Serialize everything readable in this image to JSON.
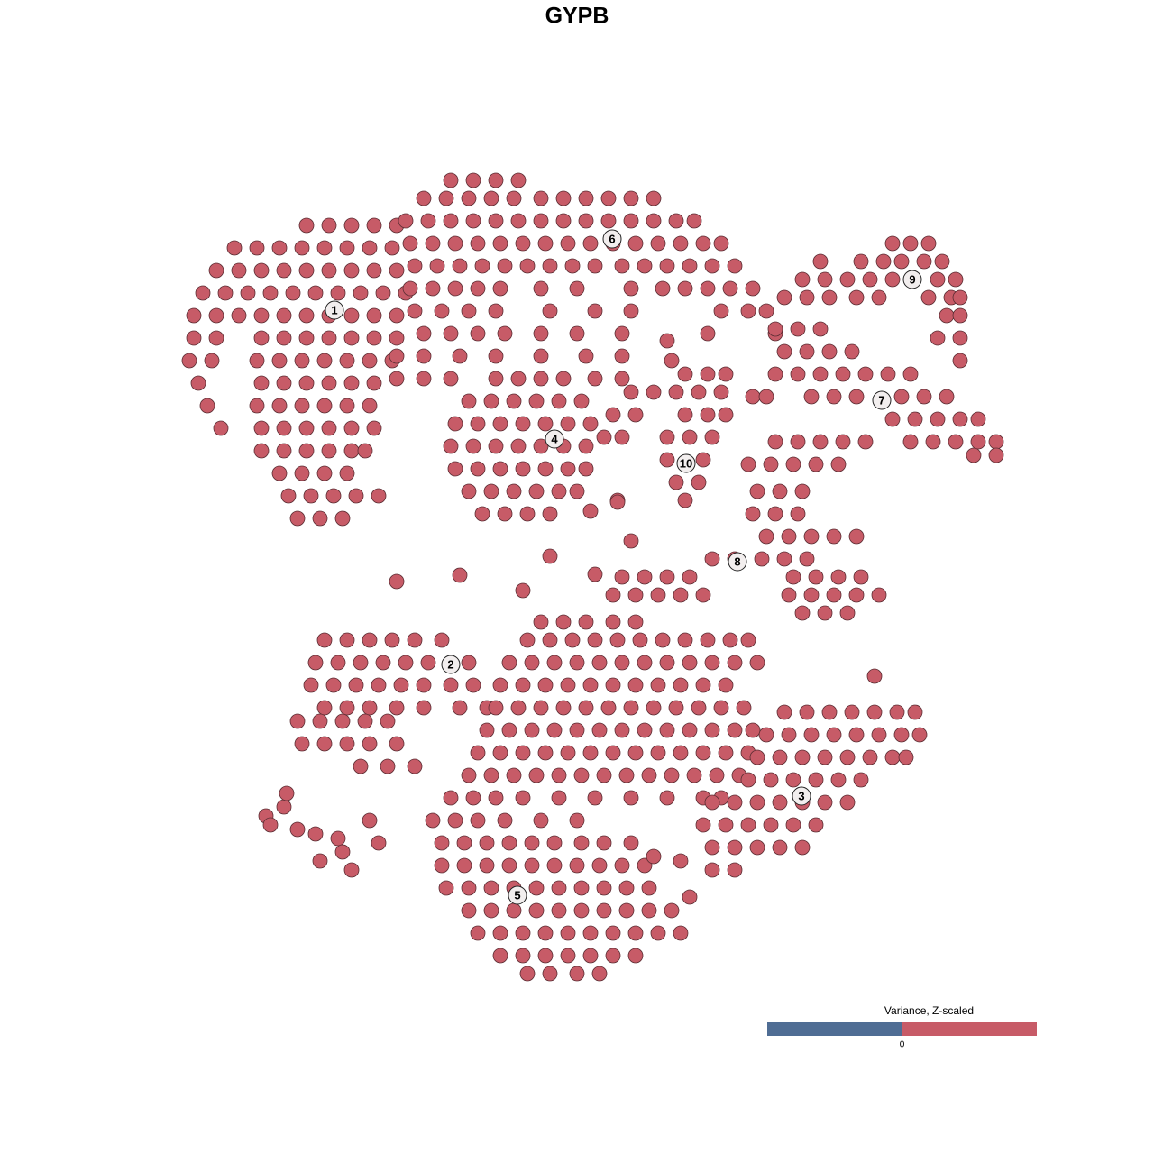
{
  "chart_data": {
    "type": "scatter",
    "title": "GYPB",
    "color": "#c75b67",
    "xlim": [
      200,
      1130
    ],
    "ylim": [
      1095,
      185
    ],
    "x": [
      340,
      365,
      390,
      415,
      440,
      260,
      285,
      310,
      335,
      360,
      385,
      410,
      435,
      240,
      265,
      290,
      315,
      340,
      365,
      390,
      415,
      440,
      225,
      250,
      275,
      300,
      325,
      350,
      375,
      400,
      425,
      450,
      215,
      240,
      265,
      290,
      315,
      340,
      365,
      390,
      415,
      440,
      215,
      240,
      290,
      315,
      340,
      365,
      390,
      415,
      440,
      210,
      235,
      285,
      310,
      335,
      360,
      385,
      410,
      435,
      220,
      290,
      315,
      340,
      365,
      390,
      415,
      230,
      285,
      310,
      335,
      360,
      385,
      410,
      245,
      290,
      315,
      340,
      365,
      390,
      415,
      290,
      315,
      340,
      365,
      390,
      405,
      310,
      335,
      360,
      385,
      320,
      345,
      370,
      395,
      420,
      330,
      355,
      380,
      500,
      525,
      550,
      575,
      470,
      495,
      520,
      545,
      570,
      600,
      625,
      650,
      675,
      700,
      725,
      450,
      475,
      500,
      525,
      550,
      575,
      600,
      625,
      650,
      675,
      700,
      725,
      750,
      770,
      455,
      480,
      505,
      530,
      555,
      580,
      605,
      630,
      655,
      680,
      705,
      730,
      755,
      780,
      800,
      460,
      485,
      510,
      535,
      560,
      585,
      610,
      635,
      660,
      690,
      715,
      740,
      765,
      790,
      815,
      455,
      480,
      505,
      530,
      555,
      600,
      640,
      700,
      735,
      760,
      785,
      810,
      835,
      460,
      490,
      520,
      550,
      610,
      660,
      700,
      800,
      830,
      850,
      470,
      500,
      530,
      560,
      600,
      640,
      690,
      860,
      440,
      470,
      510,
      550,
      600,
      650,
      690,
      440,
      470,
      500,
      660,
      690,
      550,
      575,
      600,
      625,
      520,
      545,
      570,
      595,
      620,
      645,
      505,
      530,
      555,
      580,
      605,
      630,
      655,
      500,
      525,
      550,
      575,
      600,
      625,
      650,
      505,
      530,
      555,
      580,
      605,
      630,
      650,
      520,
      545,
      570,
      595,
      620,
      640,
      535,
      560,
      585,
      610,
      760,
      785,
      805,
      700,
      725,
      750,
      775,
      800,
      680,
      705,
      760,
      785,
      805,
      670,
      690,
      740,
      765,
      790,
      740,
      780,
      750,
      775,
      685,
      760,
      990,
      1010,
      1030,
      910,
      955,
      980,
      1000,
      1025,
      1045,
      890,
      915,
      940,
      965,
      990,
      1040,
      1060,
      870,
      895,
      920,
      950,
      975,
      1030,
      1055,
      1065,
      1050,
      1065,
      1040,
      1065,
      1065,
      860,
      885,
      910,
      870,
      895,
      920,
      945,
      860,
      885,
      910,
      935,
      960,
      985,
      1010,
      835,
      850,
      900,
      925,
      950,
      1000,
      1025,
      1050,
      990,
      1015,
      1040,
      1065,
      1085,
      1010,
      1035,
      1060,
      1085,
      1105,
      1080,
      1105,
      860,
      885,
      910,
      935,
      960,
      830,
      855,
      880,
      905,
      930,
      840,
      865,
      890,
      835,
      860,
      885,
      850,
      875,
      900,
      925,
      950,
      790,
      815,
      845,
      870,
      895,
      690,
      715,
      740,
      765,
      880,
      905,
      930,
      955,
      680,
      705,
      730,
      755,
      780,
      875,
      900,
      925,
      950,
      975,
      890,
      915,
      940,
      440,
      510,
      580,
      610,
      660,
      700,
      685,
      655,
      740,
      745,
      785,
      360,
      385,
      410,
      435,
      460,
      490,
      350,
      375,
      400,
      425,
      450,
      475,
      520,
      345,
      370,
      395,
      420,
      445,
      470,
      500,
      525,
      360,
      385,
      410,
      440,
      470,
      510,
      540,
      330,
      355,
      380,
      405,
      430,
      335,
      360,
      385,
      410,
      440,
      400,
      430,
      460,
      600,
      625,
      650,
      680,
      705,
      585,
      610,
      635,
      660,
      685,
      710,
      735,
      760,
      785,
      810,
      830,
      565,
      590,
      615,
      640,
      665,
      690,
      715,
      740,
      765,
      790,
      815,
      840,
      555,
      580,
      605,
      630,
      655,
      680,
      705,
      730,
      755,
      780,
      805,
      550,
      575,
      600,
      625,
      650,
      675,
      700,
      725,
      750,
      775,
      800,
      825,
      540,
      565,
      590,
      615,
      640,
      665,
      690,
      715,
      740,
      765,
      790,
      815,
      835,
      530,
      555,
      580,
      605,
      630,
      655,
      680,
      705,
      730,
      755,
      780,
      805,
      830,
      520,
      545,
      570,
      595,
      620,
      645,
      670,
      695,
      720,
      745,
      770,
      795,
      820,
      500,
      525,
      550,
      580,
      620,
      660,
      700,
      740,
      780,
      800,
      870,
      895,
      920,
      945,
      970,
      995,
      1015,
      850,
      875,
      900,
      925,
      950,
      975,
      1000,
      1020,
      840,
      865,
      890,
      915,
      940,
      965,
      990,
      830,
      855,
      880,
      905,
      930,
      955,
      790,
      815,
      840,
      865,
      890,
      915,
      940,
      780,
      805,
      830,
      855,
      880,
      905,
      790,
      815,
      840,
      865,
      890,
      790,
      815,
      480,
      505,
      530,
      560,
      600,
      640,
      490,
      515,
      540,
      565,
      590,
      615,
      645,
      670,
      700,
      490,
      515,
      540,
      565,
      590,
      615,
      640,
      665,
      690,
      715,
      495,
      520,
      545,
      570,
      595,
      620,
      645,
      670,
      695,
      720,
      520,
      545,
      570,
      595,
      620,
      645,
      670,
      695,
      720,
      745,
      530,
      555,
      580,
      605,
      630,
      655,
      680,
      705,
      730,
      755,
      555,
      580,
      605,
      630,
      655,
      680,
      705,
      585,
      610,
      640,
      665,
      295,
      315,
      300,
      330,
      350,
      375,
      355,
      380,
      410,
      420,
      390,
      318,
      755,
      725,
      765,
      970,
      1005
    ],
    "values": [
      250,
      250,
      250,
      250,
      250,
      275,
      275,
      275,
      275,
      275,
      275,
      275,
      275,
      300,
      300,
      300,
      300,
      300,
      300,
      300,
      300,
      300,
      325,
      325,
      325,
      325,
      325,
      325,
      325,
      325,
      325,
      325,
      350,
      350,
      350,
      350,
      350,
      350,
      350,
      350,
      350,
      350,
      375,
      375,
      375,
      375,
      375,
      375,
      375,
      375,
      375,
      400,
      400,
      400,
      400,
      400,
      400,
      400,
      400,
      400,
      425,
      425,
      425,
      425,
      425,
      425,
      425,
      450,
      450,
      450,
      450,
      450,
      450,
      450,
      475,
      475,
      475,
      475,
      475,
      475,
      475,
      500,
      500,
      500,
      500,
      500,
      500,
      525,
      525,
      525,
      525,
      550,
      550,
      550,
      550,
      550,
      575,
      575,
      575,
      200,
      200,
      200,
      200,
      220,
      220,
      220,
      220,
      220,
      220,
      220,
      220,
      220,
      220,
      220,
      245,
      245,
      245,
      245,
      245,
      245,
      245,
      245,
      245,
      245,
      245,
      245,
      245,
      245,
      270,
      270,
      270,
      270,
      270,
      270,
      270,
      270,
      270,
      270,
      270,
      270,
      270,
      270,
      270,
      295,
      295,
      295,
      295,
      295,
      295,
      295,
      295,
      295,
      295,
      295,
      295,
      295,
      295,
      295,
      320,
      320,
      320,
      320,
      320,
      320,
      320,
      320,
      320,
      320,
      320,
      320,
      320,
      345,
      345,
      345,
      345,
      345,
      345,
      345,
      345,
      345,
      345,
      370,
      370,
      370,
      370,
      370,
      370,
      370,
      370,
      395,
      395,
      395,
      395,
      395,
      395,
      395,
      420,
      420,
      420,
      420,
      420,
      420,
      420,
      420,
      420,
      445,
      445,
      445,
      445,
      445,
      445,
      470,
      470,
      470,
      470,
      470,
      470,
      470,
      495,
      495,
      495,
      495,
      495,
      495,
      495,
      520,
      520,
      520,
      520,
      520,
      520,
      520,
      545,
      545,
      545,
      545,
      545,
      545,
      570,
      570,
      570,
      570,
      415,
      415,
      415,
      435,
      435,
      435,
      435,
      435,
      460,
      460,
      460,
      460,
      460,
      485,
      485,
      485,
      485,
      485,
      510,
      510,
      535,
      535,
      555,
      555,
      270,
      270,
      270,
      290,
      290,
      290,
      290,
      290,
      290,
      310,
      310,
      310,
      310,
      310,
      310,
      310,
      330,
      330,
      330,
      330,
      330,
      330,
      330,
      330,
      350,
      350,
      375,
      375,
      400,
      365,
      365,
      365,
      390,
      390,
      390,
      390,
      415,
      415,
      415,
      415,
      415,
      415,
      415,
      440,
      440,
      440,
      440,
      440,
      440,
      440,
      440,
      465,
      465,
      465,
      465,
      465,
      490,
      490,
      490,
      490,
      490,
      505,
      505,
      490,
      490,
      490,
      490,
      490,
      515,
      515,
      515,
      515,
      515,
      545,
      545,
      545,
      570,
      570,
      570,
      595,
      595,
      595,
      595,
      595,
      620,
      620,
      620,
      620,
      620,
      640,
      640,
      640,
      640,
      640,
      640,
      640,
      640,
      660,
      660,
      660,
      660,
      660,
      660,
      660,
      660,
      660,
      660,
      680,
      680,
      680,
      645,
      638,
      655,
      617,
      637,
      600,
      557,
      567,
      378,
      400,
      370,
      710,
      710,
      710,
      710,
      710,
      710,
      735,
      735,
      735,
      735,
      735,
      735,
      735,
      760,
      760,
      760,
      760,
      760,
      760,
      760,
      760,
      785,
      785,
      785,
      785,
      785,
      785,
      785,
      800,
      800,
      800,
      800,
      800,
      825,
      825,
      825,
      825,
      825,
      850,
      850,
      850,
      690,
      690,
      690,
      690,
      690,
      710,
      710,
      710,
      710,
      710,
      710,
      710,
      710,
      710,
      710,
      710,
      735,
      735,
      735,
      735,
      735,
      735,
      735,
      735,
      735,
      735,
      735,
      735,
      760,
      760,
      760,
      760,
      760,
      760,
      760,
      760,
      760,
      760,
      760,
      785,
      785,
      785,
      785,
      785,
      785,
      785,
      785,
      785,
      785,
      785,
      785,
      810,
      810,
      810,
      810,
      810,
      810,
      810,
      810,
      810,
      810,
      810,
      810,
      810,
      835,
      835,
      835,
      835,
      835,
      835,
      835,
      835,
      835,
      835,
      835,
      835,
      835,
      860,
      860,
      860,
      860,
      860,
      860,
      860,
      860,
      860,
      860,
      860,
      860,
      860,
      885,
      885,
      885,
      885,
      885,
      885,
      885,
      885,
      885,
      885,
      790,
      790,
      790,
      790,
      790,
      790,
      790,
      815,
      815,
      815,
      815,
      815,
      815,
      815,
      815,
      840,
      840,
      840,
      840,
      840,
      840,
      840,
      865,
      865,
      865,
      865,
      865,
      865,
      890,
      890,
      890,
      890,
      890,
      890,
      890,
      915,
      915,
      915,
      915,
      915,
      915,
      940,
      940,
      940,
      940,
      940,
      965,
      965,
      910,
      910,
      910,
      910,
      910,
      910,
      935,
      935,
      935,
      935,
      935,
      935,
      935,
      935,
      935,
      960,
      960,
      960,
      960,
      960,
      960,
      960,
      960,
      960,
      960,
      985,
      985,
      985,
      985,
      985,
      985,
      985,
      985,
      985,
      985,
      1010,
      1010,
      1010,
      1010,
      1010,
      1010,
      1010,
      1010,
      1010,
      1010,
      1035,
      1035,
      1035,
      1035,
      1035,
      1035,
      1035,
      1035,
      1035,
      1035,
      1060,
      1060,
      1060,
      1060,
      1060,
      1060,
      1060,
      1080,
      1080,
      1080,
      1080,
      905,
      895,
      915,
      920,
      925,
      930,
      955,
      945,
      910,
      935,
      965,
      880,
      955,
      950,
      995,
      750,
      840
    ],
    "annotations": [
      {
        "text": "1",
        "x": 371,
        "y": 344
      },
      {
        "text": "6",
        "x": 679,
        "y": 265
      },
      {
        "text": "9",
        "x": 1012,
        "y": 310
      },
      {
        "text": "7",
        "x": 978,
        "y": 444
      },
      {
        "text": "4",
        "x": 615,
        "y": 487
      },
      {
        "text": "10",
        "x": 761,
        "y": 514
      },
      {
        "text": "8",
        "x": 818,
        "y": 623
      },
      {
        "text": "2",
        "x": 500,
        "y": 737
      },
      {
        "text": "3",
        "x": 889,
        "y": 883
      },
      {
        "text": "5",
        "x": 574,
        "y": 993
      }
    ],
    "colorbar": {
      "title": "Variance, Z-scaled",
      "lim": [
        -1,
        1
      ],
      "ticks": [
        0
      ],
      "colors": [
        "#4f6d94",
        "#c75b67"
      ]
    }
  }
}
